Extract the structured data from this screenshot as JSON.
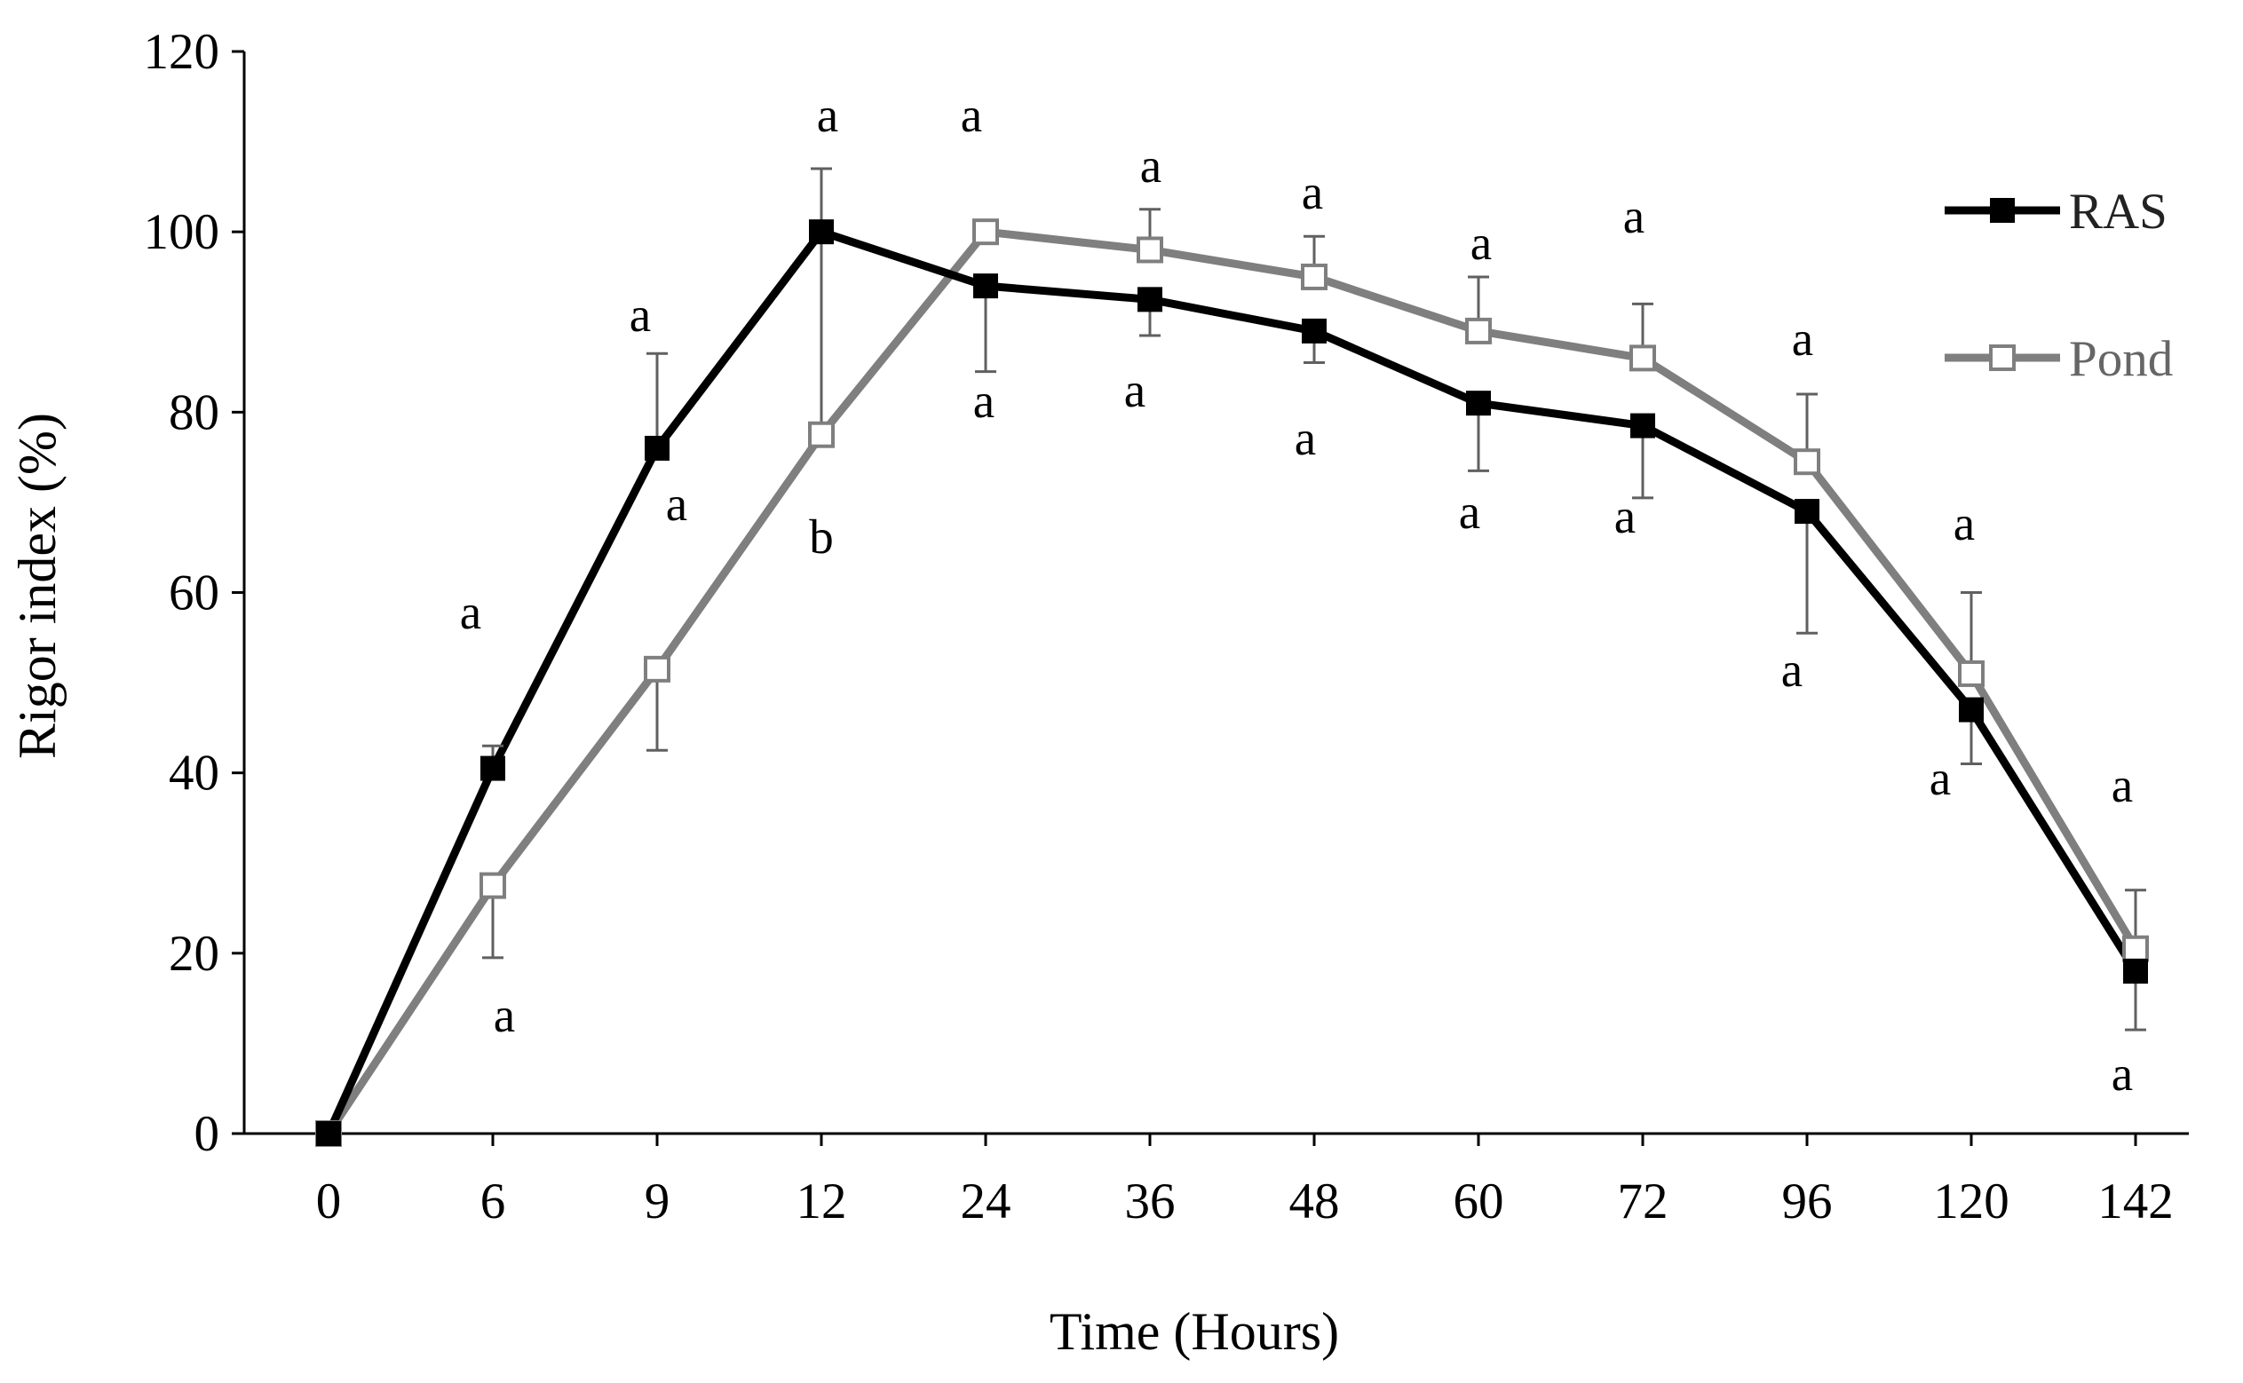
{
  "chart_data": {
    "type": "line",
    "title": "",
    "xlabel": "Time (Hours)",
    "ylabel": "Rigor index (%)",
    "categories": [
      "0",
      "6",
      "9",
      "12",
      "24",
      "36",
      "48",
      "60",
      "72",
      "96",
      "120",
      "142"
    ],
    "ylim": [
      0,
      120
    ],
    "yticks": [
      0,
      20,
      40,
      60,
      80,
      100,
      120
    ],
    "grid": false,
    "legend_position": "top-right",
    "series": [
      {
        "name": "RAS",
        "color": "#000000",
        "marker": "filled-square",
        "values": [
          0,
          40.5,
          76,
          100,
          94,
          92.5,
          89,
          81,
          78.5,
          69,
          47,
          18
        ],
        "errors": [
          0,
          2.5,
          10.5,
          7,
          9.5,
          4,
          3.5,
          7.5,
          8,
          13.5,
          6,
          6.5
        ],
        "error_direction": [
          "none",
          "up",
          "up",
          "up",
          "down",
          "down",
          "down",
          "down",
          "down",
          "down",
          "down",
          "down"
        ],
        "significance": [
          "",
          "a",
          "a",
          "a",
          "a",
          "a",
          "a",
          "a",
          "a",
          "a",
          "a",
          "a"
        ]
      },
      {
        "name": "Pond",
        "color": "#7f7f7f",
        "marker": "open-square",
        "values": [
          0,
          27.5,
          51.5,
          77.5,
          100,
          98,
          95,
          89,
          86,
          74.5,
          51,
          20.5
        ],
        "errors": [
          0,
          8,
          9,
          22.5,
          0,
          4.5,
          4.5,
          6,
          6,
          7.5,
          9,
          6.5
        ],
        "error_direction": [
          "none",
          "down",
          "down",
          "up",
          "none",
          "up",
          "up",
          "up",
          "up",
          "up",
          "up",
          "up"
        ],
        "significance": [
          "",
          "a",
          "a",
          "b",
          "a",
          "a",
          "a",
          "a",
          "a",
          "a",
          "a",
          "a"
        ]
      }
    ]
  }
}
